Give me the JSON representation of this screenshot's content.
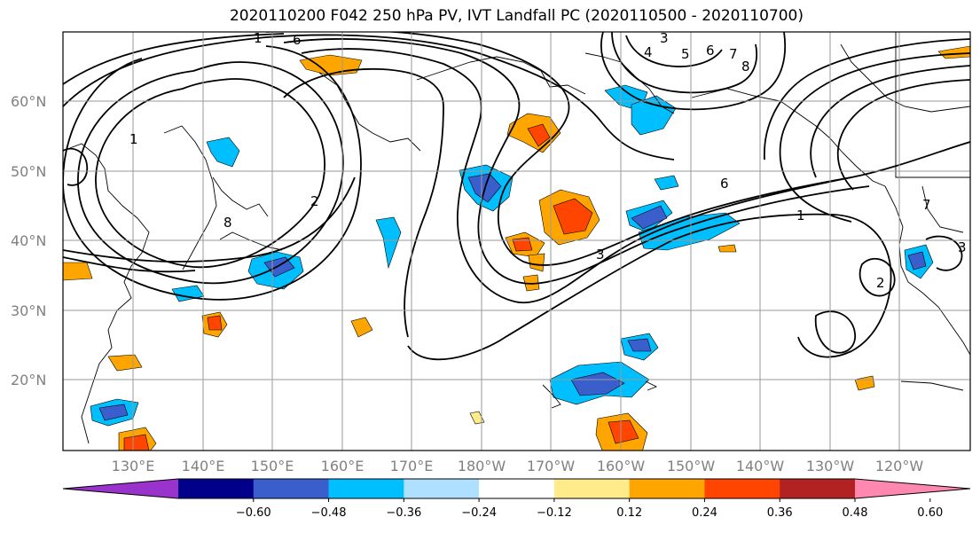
{
  "title": "2020110200 F042 250 hPa PV, IVT Landfall PC (2020110500 - 2020110700)",
  "map": {
    "lat_labels": [
      "60°N",
      "50°N",
      "40°N",
      "30°N",
      "20°N"
    ],
    "lon_labels": [
      "130°E",
      "140°E",
      "150°E",
      "160°E",
      "170°E",
      "180°W",
      "170°W",
      "160°W",
      "150°W",
      "140°W",
      "130°W",
      "120°W"
    ],
    "contour_labels": [
      "1",
      "6",
      "3",
      "4",
      "5",
      "6",
      "7",
      "8",
      "2",
      "6",
      "1",
      "3",
      "8",
      "1",
      "2",
      "3",
      "7"
    ]
  },
  "colorbar": {
    "ticks": [
      "−0.60",
      "−0.48",
      "−0.36",
      "−0.24",
      "−0.12",
      "0.12",
      "0.24",
      "0.36",
      "0.48",
      "0.60"
    ],
    "colors": [
      "#9933cc",
      "#00008b",
      "#3a5fcd",
      "#00bfff",
      "#b0e0ff",
      "#ffffff",
      "#ffeb8a",
      "#ffa500",
      "#ff4500",
      "#b22222",
      "#ff88b0"
    ]
  }
}
